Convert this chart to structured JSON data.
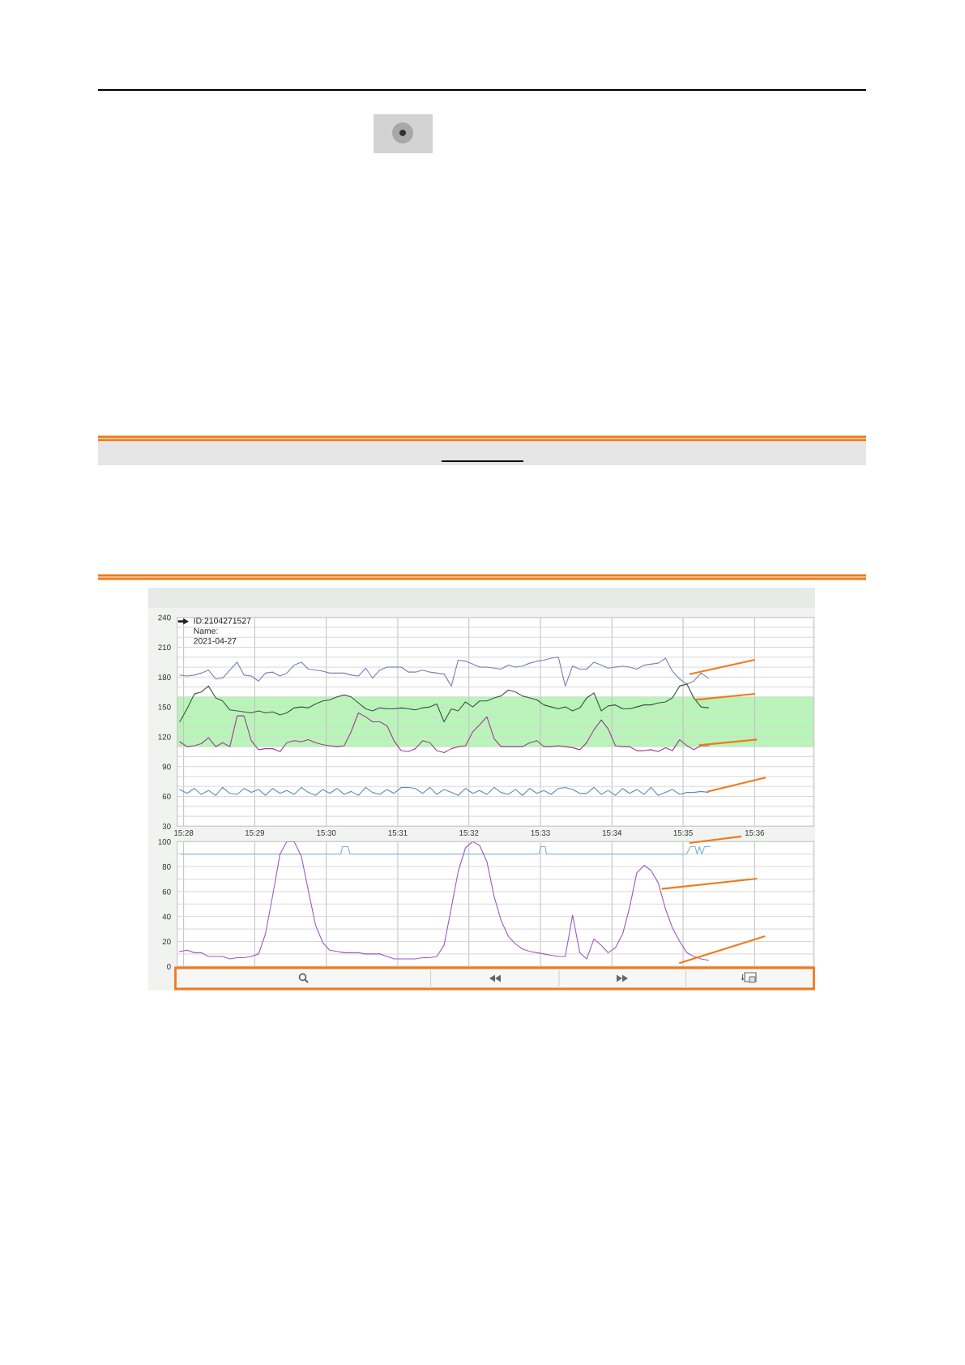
{
  "chart_data": [
    {
      "type": "line",
      "xlim": [
        15.4652,
        15.6138
      ],
      "ylim": [
        30,
        240
      ],
      "xticks": [
        {
          "value": 15.4667,
          "label": "15:28"
        },
        {
          "value": 15.4833,
          "label": "15:29"
        },
        {
          "value": 15.5,
          "label": "15:30"
        },
        {
          "value": 15.5167,
          "label": "15:31"
        },
        {
          "value": 15.5333,
          "label": "15:32"
        },
        {
          "value": 15.55,
          "label": "15:33"
        },
        {
          "value": 15.5667,
          "label": "15:34"
        },
        {
          "value": 15.5833,
          "label": "15:35"
        },
        {
          "value": 15.6,
          "label": "15:36"
        }
      ],
      "yticks": [
        30,
        {
          "value": 40,
          "label": null
        },
        {
          "value": 50,
          "label": null
        },
        60,
        {
          "value": 70,
          "label": null
        },
        {
          "value": 80,
          "label": null
        },
        90,
        {
          "value": 100,
          "label": null
        },
        {
          "value": 110,
          "label": null
        },
        120,
        {
          "value": 130,
          "label": null
        },
        {
          "value": 140,
          "label": null
        },
        150,
        {
          "value": 160,
          "label": null
        },
        {
          "value": 170,
          "label": null
        },
        180,
        {
          "value": 190,
          "label": null
        },
        {
          "value": 200,
          "label": null
        },
        210,
        {
          "value": 220,
          "label": null
        },
        {
          "value": 230,
          "label": null
        },
        240
      ],
      "grid": true,
      "bands": [
        {
          "axis": "y",
          "from": 110,
          "to": 160,
          "color": "#b9f5b9"
        }
      ],
      "annotations": [
        "ID:2104271527",
        "Name:",
        "2021-04-27"
      ],
      "x": [
        15.4658,
        15.4675,
        15.4692,
        15.4708,
        15.4725,
        15.4742,
        15.4758,
        15.4775,
        15.4792,
        15.4808,
        15.4825,
        15.4842,
        15.4858,
        15.4875,
        15.4892,
        15.4908,
        15.4925,
        15.4942,
        15.4958,
        15.4975,
        15.4992,
        15.5008,
        15.5025,
        15.5042,
        15.5058,
        15.5075,
        15.5092,
        15.5108,
        15.5125,
        15.5142,
        15.5158,
        15.5175,
        15.5192,
        15.5208,
        15.5225,
        15.5242,
        15.5258,
        15.5275,
        15.5292,
        15.5308,
        15.5325,
        15.5342,
        15.5358,
        15.5375,
        15.5392,
        15.5408,
        15.5425,
        15.5442,
        15.5458,
        15.5475,
        15.5492,
        15.5508,
        15.5525,
        15.5542,
        15.5558,
        15.5575,
        15.5592,
        15.5608,
        15.5625,
        15.5642,
        15.5658,
        15.5675,
        15.5692,
        15.5708,
        15.5725,
        15.5742,
        15.5758,
        15.5775,
        15.5792,
        15.5808,
        15.5825,
        15.5842,
        15.5858,
        15.5875,
        15.5892
      ],
      "series": [
        {
          "color": "#7b7fb5",
          "values": [
            182,
            181,
            182,
            184,
            187,
            178,
            179,
            187,
            195,
            182,
            181,
            176,
            184,
            185,
            181,
            184,
            192,
            195,
            188,
            187,
            186,
            184,
            184,
            184,
            182,
            181,
            189,
            179,
            187,
            190,
            190,
            190,
            185,
            185,
            187,
            185,
            184,
            183,
            171,
            197,
            196,
            193,
            190,
            190,
            189,
            188,
            192,
            190,
            191,
            194,
            196,
            197,
            199,
            200,
            171,
            191,
            188,
            188,
            195,
            192,
            189,
            190,
            191,
            190,
            188,
            192,
            193,
            194,
            199,
            186,
            178,
            173,
            176,
            184,
            179
          ]
        },
        {
          "color": "#35583f",
          "values": [
            135,
            148,
            163,
            165,
            171,
            159,
            156,
            147,
            146,
            145,
            144,
            146,
            144,
            145,
            142,
            144,
            149,
            150,
            149,
            153,
            156,
            157,
            160,
            162,
            160,
            154,
            148,
            146,
            149,
            148,
            148,
            149,
            148,
            147,
            149,
            150,
            153,
            135,
            148,
            146,
            155,
            150,
            156,
            156,
            159,
            161,
            167,
            165,
            161,
            159,
            157,
            152,
            150,
            148,
            150,
            146,
            149,
            159,
            164,
            146,
            151,
            152,
            148,
            148,
            150,
            152,
            152,
            154,
            155,
            159,
            171,
            173,
            159,
            150,
            149
          ]
        },
        {
          "color": "#9b3f8f",
          "values": [
            115,
            110,
            111,
            113,
            119,
            110,
            114,
            110,
            141,
            141,
            116,
            107,
            108,
            108,
            105,
            114,
            116,
            115,
            117,
            114,
            112,
            111,
            110,
            111,
            125,
            144,
            140,
            135,
            135,
            131,
            116,
            106,
            105,
            108,
            116,
            114,
            106,
            104,
            108,
            110,
            111,
            125,
            132,
            140,
            118,
            110,
            110,
            110,
            110,
            114,
            116,
            110,
            110,
            111,
            110,
            109,
            107,
            114,
            127,
            137,
            128,
            111,
            110,
            110,
            106,
            106,
            107,
            105,
            109,
            106,
            117,
            111,
            107,
            111,
            111
          ]
        },
        {
          "color": "#5b8eb0",
          "values": [
            67,
            63,
            68,
            62,
            66,
            61,
            69,
            63,
            62,
            68,
            64,
            67,
            61,
            68,
            63,
            66,
            62,
            69,
            64,
            61,
            67,
            63,
            68,
            62,
            65,
            61,
            69,
            64,
            62,
            67,
            63,
            69,
            69,
            68,
            63,
            69,
            62,
            67,
            64,
            61,
            68,
            63,
            66,
            62,
            69,
            64,
            62,
            67,
            61,
            68,
            63,
            66,
            62,
            68,
            69,
            67,
            63,
            63,
            69,
            62,
            66,
            61,
            68,
            63,
            67,
            62,
            69,
            61,
            64,
            67,
            62,
            64,
            64,
            65,
            64
          ]
        }
      ]
    },
    {
      "type": "line",
      "xlim": [
        15.4652,
        15.6138
      ],
      "ylim": [
        0,
        100
      ],
      "xticks": [
        {
          "value": 15.4667,
          "label": null
        },
        {
          "value": 15.4833,
          "label": null
        },
        {
          "value": 15.5,
          "label": null
        },
        {
          "value": 15.5167,
          "label": null
        },
        {
          "value": 15.5333,
          "label": null
        },
        {
          "value": 15.55,
          "label": null
        },
        {
          "value": 15.5667,
          "label": null
        },
        {
          "value": 15.5833,
          "label": null
        },
        {
          "value": 15.6,
          "label": null
        }
      ],
      "yticks": [
        0,
        {
          "value": 10,
          "label": null
        },
        20,
        {
          "value": 30,
          "label": null
        },
        40,
        {
          "value": 50,
          "label": null
        },
        60,
        {
          "value": 70,
          "label": null
        },
        80,
        {
          "value": 90,
          "label": null
        },
        100
      ],
      "tick_labels": "y",
      "grid": true,
      "x": [
        15.4658,
        15.4675,
        15.4692,
        15.4708,
        15.4725,
        15.4742,
        15.4758,
        15.4775,
        15.4792,
        15.4808,
        15.4825,
        15.4842,
        15.4858,
        15.4875,
        15.4892,
        15.4908,
        15.4925,
        15.4942,
        15.4958,
        15.4975,
        15.4992,
        15.5008,
        15.5025,
        15.5042,
        15.5058,
        15.5075,
        15.5092,
        15.5108,
        15.5125,
        15.5142,
        15.5158,
        15.5175,
        15.5192,
        15.5208,
        15.5225,
        15.5242,
        15.5258,
        15.5275,
        15.5292,
        15.5308,
        15.5325,
        15.5342,
        15.5358,
        15.5375,
        15.5392,
        15.5408,
        15.5425,
        15.5442,
        15.5458,
        15.5475,
        15.5492,
        15.5508,
        15.5525,
        15.5542,
        15.5558,
        15.5575,
        15.5592,
        15.5608,
        15.5625,
        15.5642,
        15.5658,
        15.5675,
        15.5692,
        15.5708,
        15.5725,
        15.5742,
        15.5758,
        15.5775,
        15.5792,
        15.5808,
        15.5825,
        15.5842,
        15.5858,
        15.5875,
        15.5892
      ],
      "series": [
        {
          "color": "#7fb2d6",
          "x": [
            15.466,
            15.5034,
            15.5038,
            15.5051,
            15.5055,
            15.5497,
            15.5501,
            15.5511,
            15.5514,
            15.5841,
            15.585,
            15.5861,
            15.5866,
            15.5871,
            15.5877,
            15.5883,
            15.5896
          ],
          "values": [
            90,
            90,
            96,
            96,
            90,
            90,
            96,
            96,
            90,
            90,
            96,
            96,
            90,
            96,
            90,
            96,
            96
          ]
        },
        {
          "color": "#9a5cc0",
          "values": [
            12,
            13,
            11,
            11,
            8,
            8,
            8,
            6,
            7,
            7,
            8,
            10,
            26,
            57,
            90,
            100,
            100,
            88,
            61,
            33,
            19,
            13,
            12,
            11,
            11,
            11,
            10,
            10,
            10,
            8,
            6,
            6,
            6,
            6,
            7,
            7,
            8,
            17,
            47,
            76,
            95,
            100,
            97,
            84,
            56,
            37,
            24,
            18,
            14,
            12,
            11,
            10,
            9,
            8,
            8,
            41,
            11,
            6,
            22,
            17,
            11,
            15,
            26,
            47,
            75,
            81,
            77,
            67,
            46,
            31,
            20,
            11,
            8,
            6,
            5
          ]
        }
      ]
    }
  ]
}
